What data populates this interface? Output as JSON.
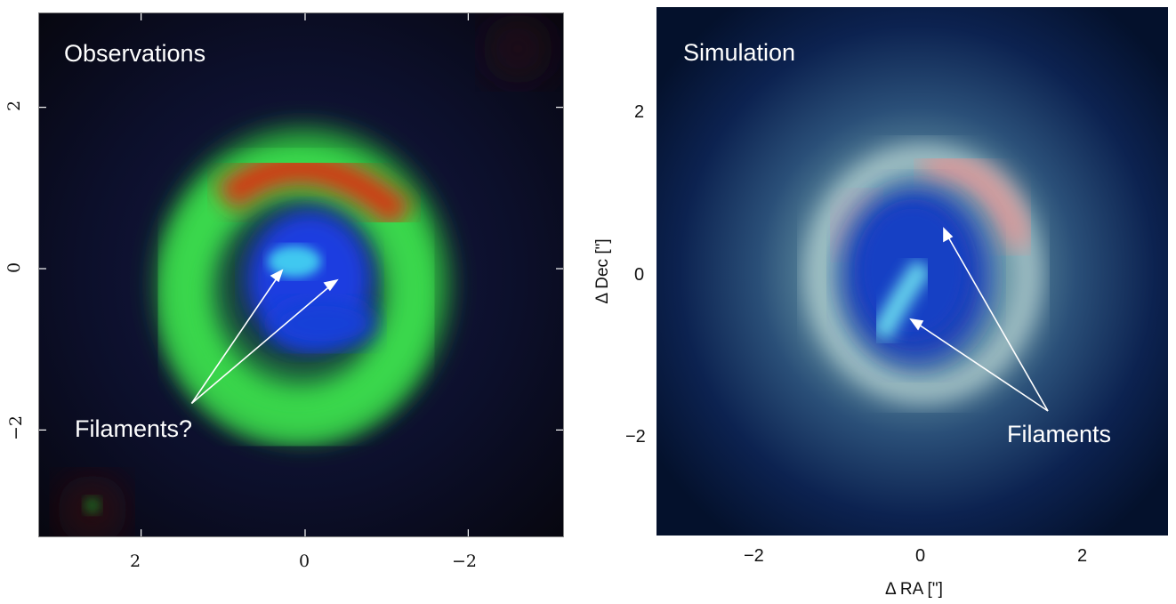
{
  "left_panel": {
    "title": "Observations",
    "annotation": "Filaments?",
    "x_ticks": [
      "2",
      "0",
      "−2"
    ],
    "y_ticks": [
      "2",
      "0",
      "−2"
    ]
  },
  "right_panel": {
    "title": "Simulation",
    "annotation": "Filaments",
    "x_ticks": [
      "−2",
      "0",
      "2"
    ],
    "y_ticks": [
      "2",
      "0",
      "−2"
    ],
    "xlabel": "Δ RA [\"]",
    "ylabel": "Δ Dec [\"]"
  },
  "colors": {
    "obs_background": "#0a0a18",
    "obs_ring": "#2fd040",
    "obs_arc": "#e02a10",
    "obs_core": "#1a3ee0",
    "sim_background": "#05173a",
    "sim_halo": "#a8d2d0",
    "sim_core": "#1a3fb8",
    "sim_arc": "#e08a8a"
  }
}
